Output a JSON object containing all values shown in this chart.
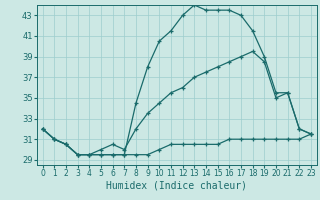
{
  "title": "",
  "xlabel": "Humidex (Indice chaleur)",
  "ylabel": "",
  "bg_color": "#cce8e4",
  "grid_color": "#9ecece",
  "line_color": "#1a6b6b",
  "xlim": [
    -0.5,
    23.5
  ],
  "ylim": [
    28.5,
    44.0
  ],
  "xticks": [
    0,
    1,
    2,
    3,
    4,
    5,
    6,
    7,
    8,
    9,
    10,
    11,
    12,
    13,
    14,
    15,
    16,
    17,
    18,
    19,
    20,
    21,
    22,
    23
  ],
  "yticks": [
    29,
    31,
    33,
    35,
    37,
    39,
    41,
    43
  ],
  "line1_x": [
    0,
    1,
    2,
    3,
    4,
    5,
    6,
    7,
    8,
    9,
    10,
    11,
    12,
    13,
    14,
    15,
    16,
    17,
    18,
    19,
    20,
    21,
    22,
    23
  ],
  "line1_y": [
    32,
    31,
    30.5,
    29.5,
    29.5,
    29.5,
    29.5,
    29.5,
    29.5,
    29.5,
    30.0,
    30.5,
    30.5,
    30.5,
    30.5,
    30.5,
    31.0,
    31.0,
    31.0,
    31.0,
    31.0,
    31.0,
    31.0,
    31.5
  ],
  "line2_x": [
    0,
    1,
    2,
    3,
    4,
    5,
    6,
    7,
    8,
    9,
    10,
    11,
    12,
    13,
    14,
    15,
    16,
    17,
    18,
    19,
    20,
    21,
    22,
    23
  ],
  "line2_y": [
    32,
    31,
    30.5,
    29.5,
    29.5,
    30.0,
    30.5,
    30.0,
    32.0,
    33.5,
    34.5,
    35.5,
    36.0,
    37.0,
    37.5,
    38.0,
    38.5,
    39.0,
    39.5,
    38.5,
    35.0,
    35.5,
    32.0,
    31.5
  ],
  "line3_x": [
    0,
    1,
    2,
    3,
    4,
    5,
    6,
    7,
    8,
    9,
    10,
    11,
    12,
    13,
    14,
    15,
    16,
    17,
    18,
    19,
    20,
    21,
    22,
    23
  ],
  "line3_y": [
    32,
    31,
    30.5,
    29.5,
    29.5,
    29.5,
    29.5,
    29.5,
    34.5,
    38.0,
    40.5,
    41.5,
    43.0,
    44.0,
    43.5,
    43.5,
    43.5,
    43.0,
    41.5,
    39.0,
    35.5,
    35.5,
    32.0,
    31.5
  ],
  "marker": "+",
  "markersize": 3,
  "linewidth": 0.9,
  "tick_fontsize": 6,
  "xlabel_fontsize": 7
}
